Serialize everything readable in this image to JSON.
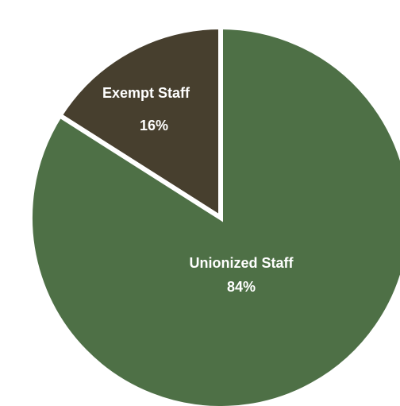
{
  "chart_data": {
    "type": "pie",
    "title": "",
    "slices": [
      {
        "label": "Exempt Staff",
        "value": 16,
        "value_label": "16%",
        "color": "#473f2e"
      },
      {
        "label": "Unionized Staff",
        "value": 84,
        "value_label": "84%",
        "color": "#4e7046"
      }
    ],
    "start_angle_deg": -90,
    "direction": "counterclockwise",
    "separator_color": "#ffffff",
    "legend": "none"
  }
}
